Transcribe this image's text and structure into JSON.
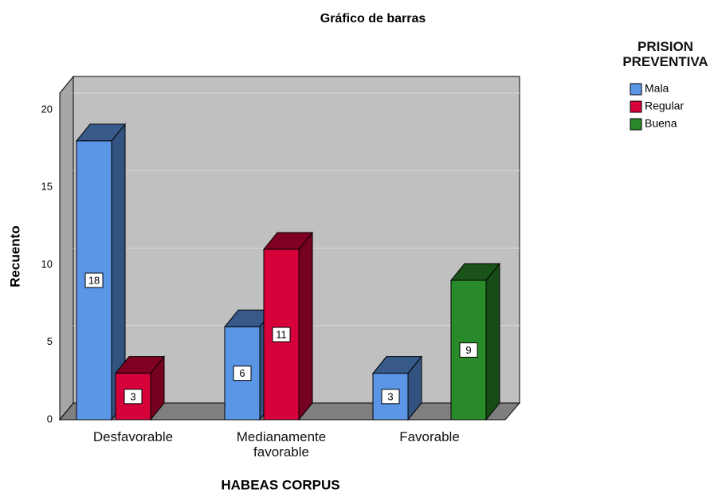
{
  "chart_data": {
    "type": "bar3d",
    "title": "Gráfico de barras",
    "x_label": "HABEAS CORPUS",
    "y_label": "Recuento",
    "legend_title": "PRISION PREVENTIVA",
    "categories": [
      "Desfavorable",
      "Medianamente favorable",
      "Favorable"
    ],
    "series": [
      {
        "name": "Mala",
        "color": "#5b96e6",
        "values": [
          18,
          6,
          3
        ]
      },
      {
        "name": "Regular",
        "color": "#d6003b",
        "values": [
          3,
          11,
          null
        ]
      },
      {
        "name": "Buena",
        "color": "#298a2a",
        "values": [
          null,
          null,
          9
        ]
      }
    ],
    "ylim": [
      0,
      20
    ],
    "yticks": [
      0,
      5,
      10,
      15,
      20
    ],
    "grid": true,
    "legend": "right"
  }
}
